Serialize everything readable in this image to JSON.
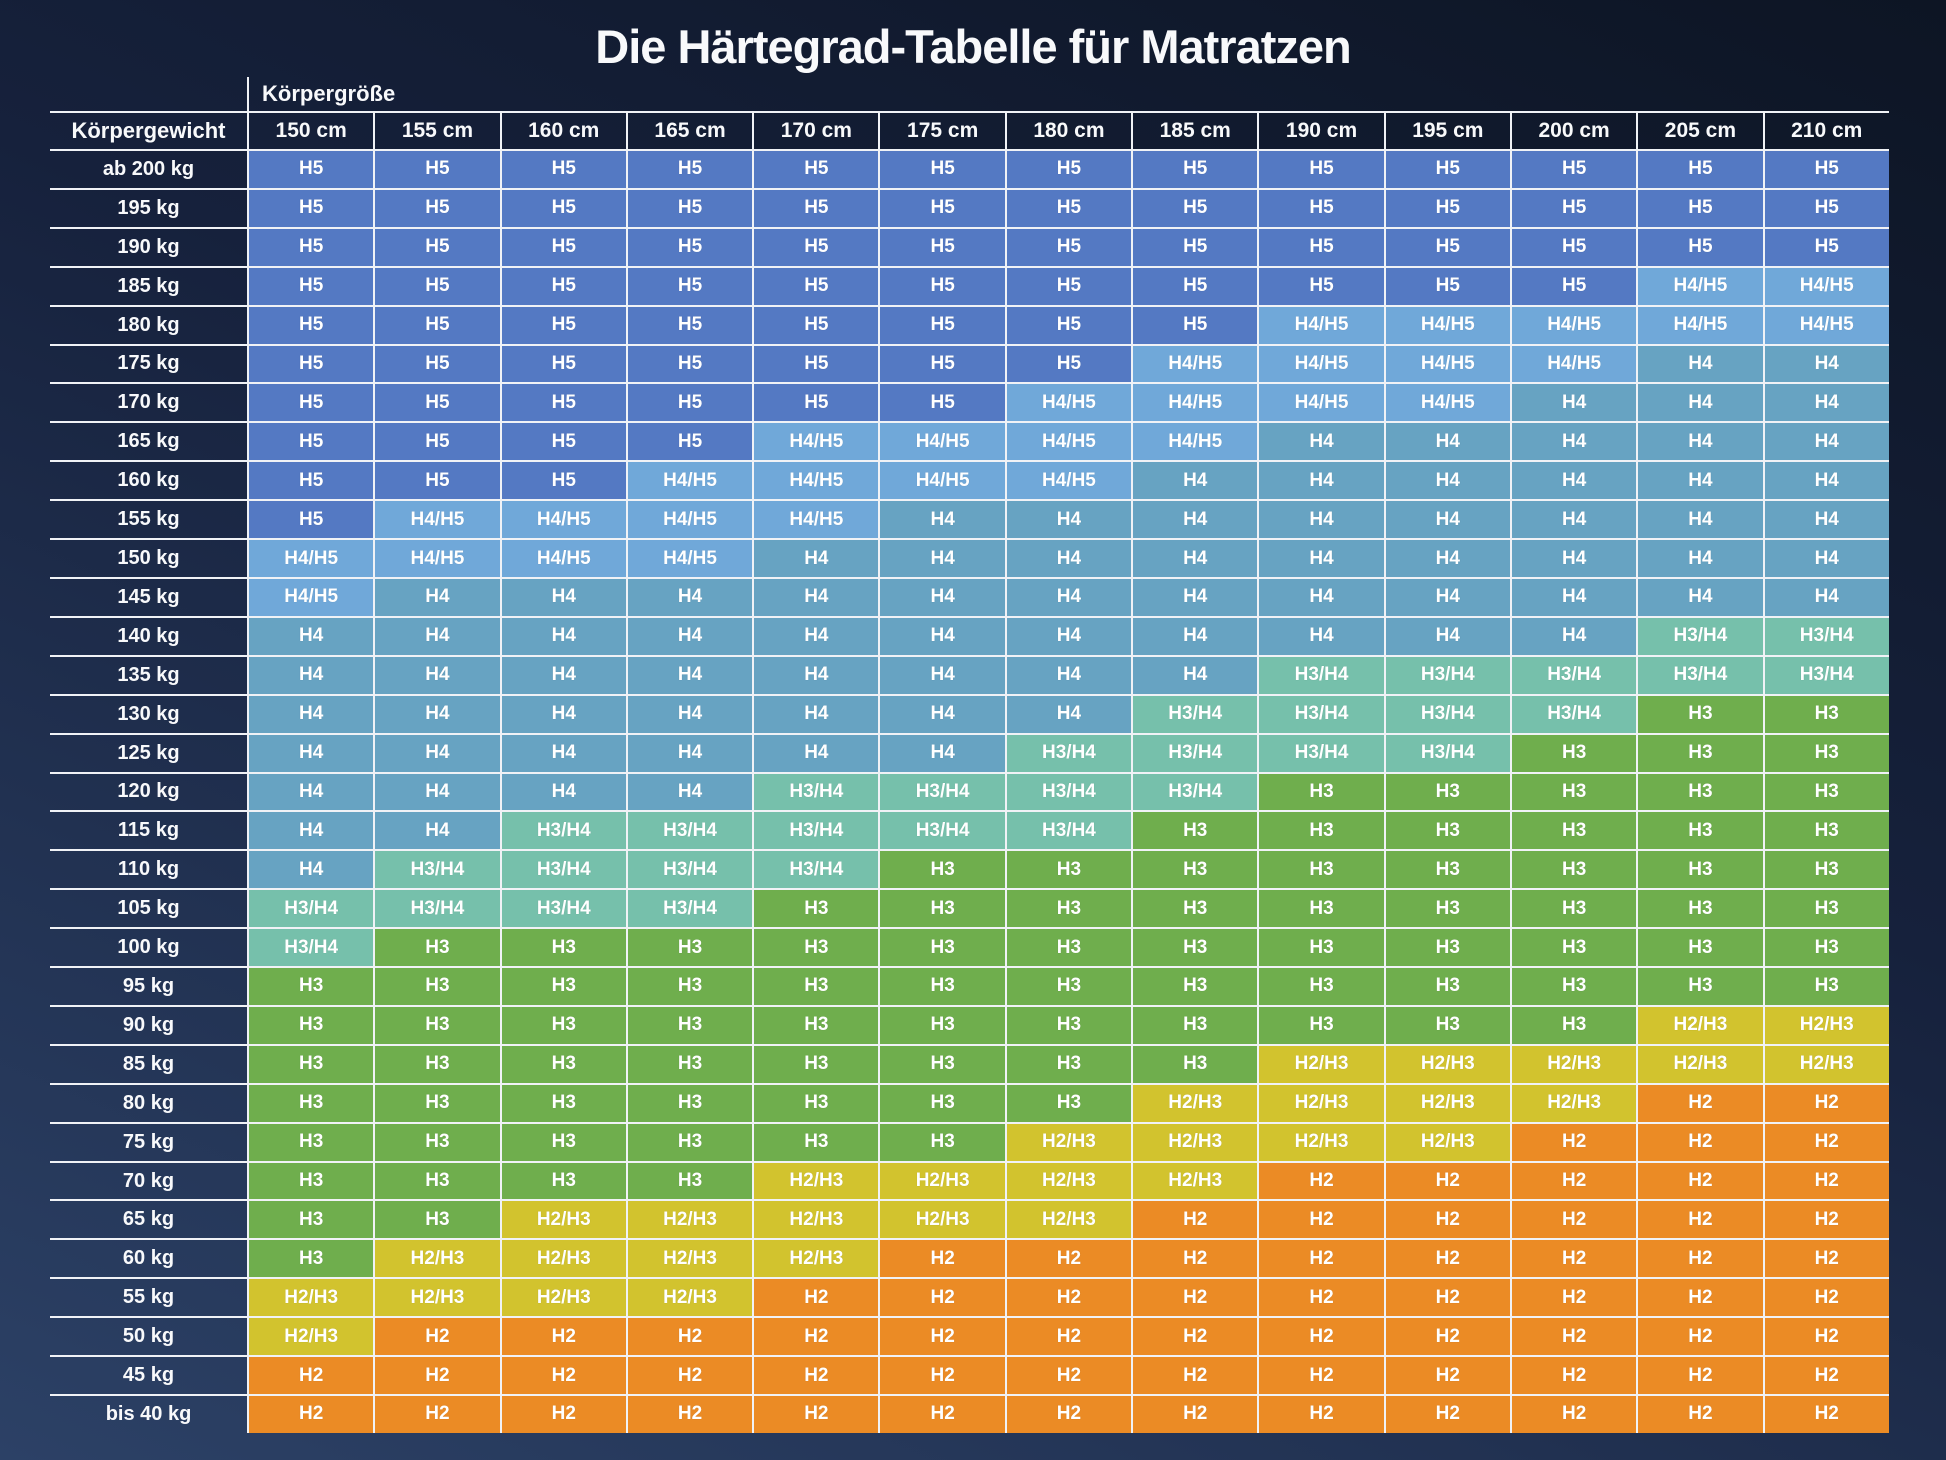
{
  "chart_data": {
    "type": "heatmap",
    "title": "Die Härtegrad-Tabelle für Matratzen",
    "column_group_label": "Körpergröße",
    "row_group_label": "Körpergewicht",
    "columns": [
      "150 cm",
      "155 cm",
      "160 cm",
      "165 cm",
      "170 cm",
      "175 cm",
      "180 cm",
      "185 cm",
      "190 cm",
      "195 cm",
      "200 cm",
      "205 cm",
      "210 cm"
    ],
    "rows": [
      {
        "label": "ab 200 kg",
        "cells": [
          "H5",
          "H5",
          "H5",
          "H5",
          "H5",
          "H5",
          "H5",
          "H5",
          "H5",
          "H5",
          "H5",
          "H5",
          "H5"
        ]
      },
      {
        "label": "195 kg",
        "cells": [
          "H5",
          "H5",
          "H5",
          "H5",
          "H5",
          "H5",
          "H5",
          "H5",
          "H5",
          "H5",
          "H5",
          "H5",
          "H5"
        ]
      },
      {
        "label": "190 kg",
        "cells": [
          "H5",
          "H5",
          "H5",
          "H5",
          "H5",
          "H5",
          "H5",
          "H5",
          "H5",
          "H5",
          "H5",
          "H5",
          "H5"
        ]
      },
      {
        "label": "185 kg",
        "cells": [
          "H5",
          "H5",
          "H5",
          "H5",
          "H5",
          "H5",
          "H5",
          "H5",
          "H5",
          "H5",
          "H5",
          "H4/H5",
          "H4/H5"
        ]
      },
      {
        "label": "180 kg",
        "cells": [
          "H5",
          "H5",
          "H5",
          "H5",
          "H5",
          "H5",
          "H5",
          "H5",
          "H4/H5",
          "H4/H5",
          "H4/H5",
          "H4/H5",
          "H4/H5"
        ]
      },
      {
        "label": "175 kg",
        "cells": [
          "H5",
          "H5",
          "H5",
          "H5",
          "H5",
          "H5",
          "H5",
          "H4/H5",
          "H4/H5",
          "H4/H5",
          "H4/H5",
          "H4",
          "H4"
        ]
      },
      {
        "label": "170 kg",
        "cells": [
          "H5",
          "H5",
          "H5",
          "H5",
          "H5",
          "H5",
          "H4/H5",
          "H4/H5",
          "H4/H5",
          "H4/H5",
          "H4",
          "H4",
          "H4"
        ]
      },
      {
        "label": "165 kg",
        "cells": [
          "H5",
          "H5",
          "H5",
          "H5",
          "H4/H5",
          "H4/H5",
          "H4/H5",
          "H4/H5",
          "H4",
          "H4",
          "H4",
          "H4",
          "H4"
        ]
      },
      {
        "label": "160 kg",
        "cells": [
          "H5",
          "H5",
          "H5",
          "H4/H5",
          "H4/H5",
          "H4/H5",
          "H4/H5",
          "H4",
          "H4",
          "H4",
          "H4",
          "H4",
          "H4"
        ]
      },
      {
        "label": "155 kg",
        "cells": [
          "H5",
          "H4/H5",
          "H4/H5",
          "H4/H5",
          "H4/H5",
          "H4",
          "H4",
          "H4",
          "H4",
          "H4",
          "H4",
          "H4",
          "H4"
        ]
      },
      {
        "label": "150 kg",
        "cells": [
          "H4/H5",
          "H4/H5",
          "H4/H5",
          "H4/H5",
          "H4",
          "H4",
          "H4",
          "H4",
          "H4",
          "H4",
          "H4",
          "H4",
          "H4"
        ]
      },
      {
        "label": "145 kg",
        "cells": [
          "H4/H5",
          "H4",
          "H4",
          "H4",
          "H4",
          "H4",
          "H4",
          "H4",
          "H4",
          "H4",
          "H4",
          "H4",
          "H4"
        ]
      },
      {
        "label": "140 kg",
        "cells": [
          "H4",
          "H4",
          "H4",
          "H4",
          "H4",
          "H4",
          "H4",
          "H4",
          "H4",
          "H4",
          "H4",
          "H3/H4",
          "H3/H4"
        ]
      },
      {
        "label": "135 kg",
        "cells": [
          "H4",
          "H4",
          "H4",
          "H4",
          "H4",
          "H4",
          "H4",
          "H4",
          "H3/H4",
          "H3/H4",
          "H3/H4",
          "H3/H4",
          "H3/H4"
        ]
      },
      {
        "label": "130 kg",
        "cells": [
          "H4",
          "H4",
          "H4",
          "H4",
          "H4",
          "H4",
          "H4",
          "H3/H4",
          "H3/H4",
          "H3/H4",
          "H3/H4",
          "H3",
          "H3"
        ]
      },
      {
        "label": "125 kg",
        "cells": [
          "H4",
          "H4",
          "H4",
          "H4",
          "H4",
          "H4",
          "H3/H4",
          "H3/H4",
          "H3/H4",
          "H3/H4",
          "H3",
          "H3",
          "H3"
        ]
      },
      {
        "label": "120 kg",
        "cells": [
          "H4",
          "H4",
          "H4",
          "H4",
          "H3/H4",
          "H3/H4",
          "H3/H4",
          "H3/H4",
          "H3",
          "H3",
          "H3",
          "H3",
          "H3"
        ]
      },
      {
        "label": "115 kg",
        "cells": [
          "H4",
          "H4",
          "H3/H4",
          "H3/H4",
          "H3/H4",
          "H3/H4",
          "H3/H4",
          "H3",
          "H3",
          "H3",
          "H3",
          "H3",
          "H3"
        ]
      },
      {
        "label": "110 kg",
        "cells": [
          "H4",
          "H3/H4",
          "H3/H4",
          "H3/H4",
          "H3/H4",
          "H3",
          "H3",
          "H3",
          "H3",
          "H3",
          "H3",
          "H3",
          "H3"
        ]
      },
      {
        "label": "105 kg",
        "cells": [
          "H3/H4",
          "H3/H4",
          "H3/H4",
          "H3/H4",
          "H3",
          "H3",
          "H3",
          "H3",
          "H3",
          "H3",
          "H3",
          "H3",
          "H3"
        ]
      },
      {
        "label": "100 kg",
        "cells": [
          "H3/H4",
          "H3",
          "H3",
          "H3",
          "H3",
          "H3",
          "H3",
          "H3",
          "H3",
          "H3",
          "H3",
          "H3",
          "H3"
        ]
      },
      {
        "label": "95 kg",
        "cells": [
          "H3",
          "H3",
          "H3",
          "H3",
          "H3",
          "H3",
          "H3",
          "H3",
          "H3",
          "H3",
          "H3",
          "H3",
          "H3"
        ]
      },
      {
        "label": "90 kg",
        "cells": [
          "H3",
          "H3",
          "H3",
          "H3",
          "H3",
          "H3",
          "H3",
          "H3",
          "H3",
          "H3",
          "H3",
          "H2/H3",
          "H2/H3"
        ]
      },
      {
        "label": "85 kg",
        "cells": [
          "H3",
          "H3",
          "H3",
          "H3",
          "H3",
          "H3",
          "H3",
          "H3",
          "H2/H3",
          "H2/H3",
          "H2/H3",
          "H2/H3",
          "H2/H3"
        ]
      },
      {
        "label": "80 kg",
        "cells": [
          "H3",
          "H3",
          "H3",
          "H3",
          "H3",
          "H3",
          "H3",
          "H2/H3",
          "H2/H3",
          "H2/H3",
          "H2/H3",
          "H2",
          "H2"
        ]
      },
      {
        "label": "75 kg",
        "cells": [
          "H3",
          "H3",
          "H3",
          "H3",
          "H3",
          "H3",
          "H2/H3",
          "H2/H3",
          "H2/H3",
          "H2/H3",
          "H2",
          "H2",
          "H2"
        ]
      },
      {
        "label": "70 kg",
        "cells": [
          "H3",
          "H3",
          "H3",
          "H3",
          "H2/H3",
          "H2/H3",
          "H2/H3",
          "H2/H3",
          "H2",
          "H2",
          "H2",
          "H2",
          "H2"
        ]
      },
      {
        "label": "65 kg",
        "cells": [
          "H3",
          "H3",
          "H2/H3",
          "H2/H3",
          "H2/H3",
          "H2/H3",
          "H2/H3",
          "H2",
          "H2",
          "H2",
          "H2",
          "H2",
          "H2"
        ]
      },
      {
        "label": "60 kg",
        "cells": [
          "H3",
          "H2/H3",
          "H2/H3",
          "H2/H3",
          "H2/H3",
          "H2",
          "H2",
          "H2",
          "H2",
          "H2",
          "H2",
          "H2",
          "H2"
        ]
      },
      {
        "label": "55 kg",
        "cells": [
          "H2/H3",
          "H2/H3",
          "H2/H3",
          "H2/H3",
          "H2",
          "H2",
          "H2",
          "H2",
          "H2",
          "H2",
          "H2",
          "H2",
          "H2"
        ]
      },
      {
        "label": "50 kg",
        "cells": [
          "H2/H3",
          "H2",
          "H2",
          "H2",
          "H2",
          "H2",
          "H2",
          "H2",
          "H2",
          "H2",
          "H2",
          "H2",
          "H2"
        ]
      },
      {
        "label": "45 kg",
        "cells": [
          "H2",
          "H2",
          "H2",
          "H2",
          "H2",
          "H2",
          "H2",
          "H2",
          "H2",
          "H2",
          "H2",
          "H2",
          "H2"
        ]
      },
      {
        "label": "bis 40 kg",
        "cells": [
          "H2",
          "H2",
          "H2",
          "H2",
          "H2",
          "H2",
          "H2",
          "H2",
          "H2",
          "H2",
          "H2",
          "H2",
          "H2"
        ]
      }
    ],
    "grade_colors": {
      "H5": "#5479c3",
      "H4/H5": "#70a8d9",
      "H4": "#67a3c2",
      "H3/H4": "#76c0ab",
      "H3": "#6fae4d",
      "H2/H3": "#d2c32e",
      "H2": "#eb8b25"
    }
  },
  "style": {
    "background_top": "#0d1524",
    "background_mid": "#16213c",
    "background_bottom": "#2c4166",
    "grid_line": "#f0f2f6",
    "text_color": "#f8f9fb"
  }
}
